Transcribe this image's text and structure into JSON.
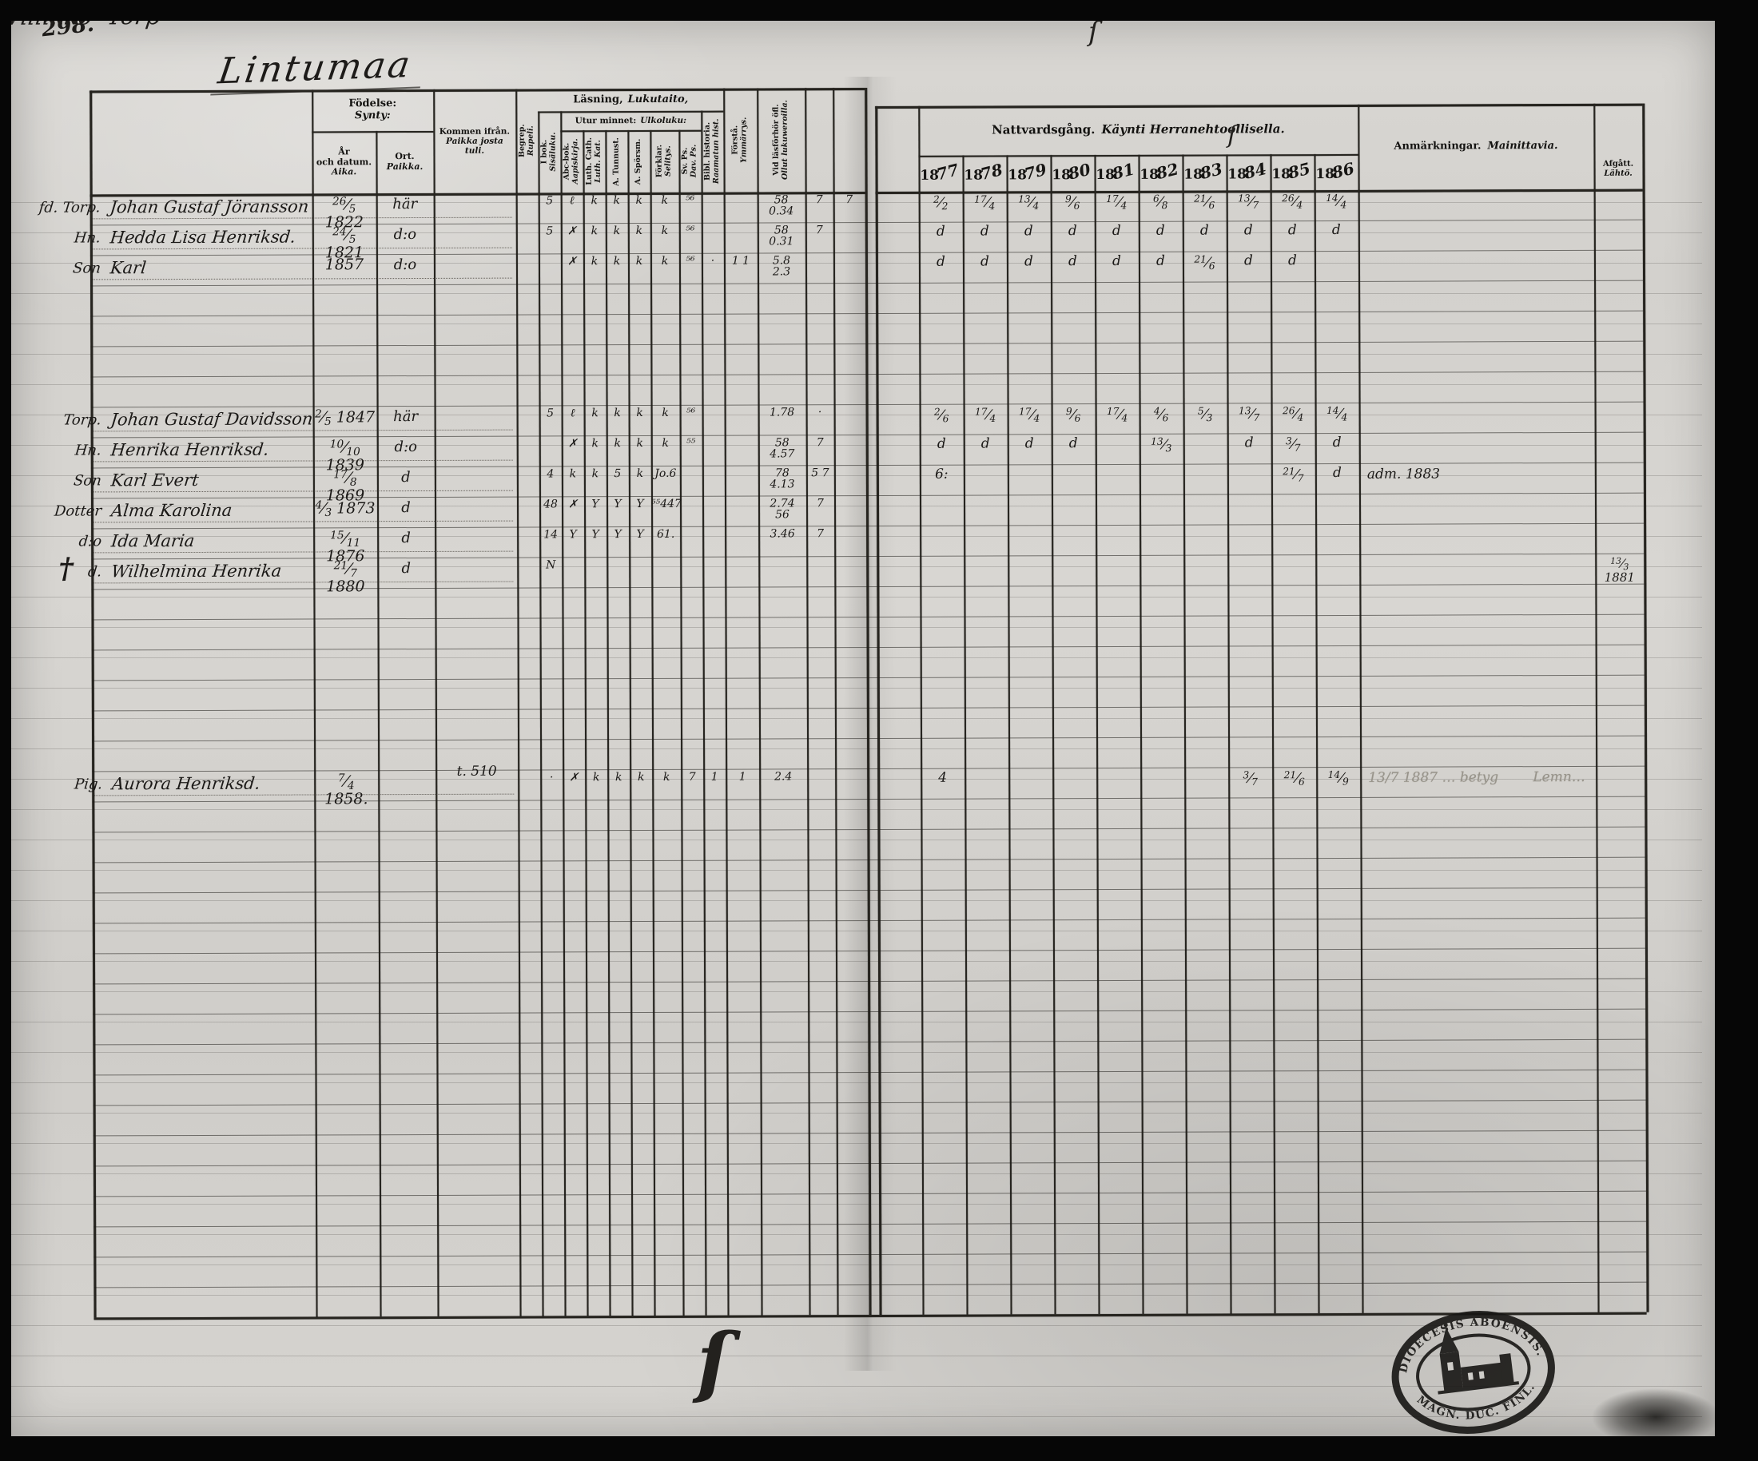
{
  "page": {
    "number": "298.",
    "title": "Lintumaa",
    "household_title": "Willikko  Torp"
  },
  "headers": {
    "fodelse_sv": "Födelse:",
    "fodelse_fi": "Synty:",
    "ar_1": "År",
    "ar_2": "och datum.",
    "ar_fi": "Aika.",
    "ort_sv": "Ort.",
    "ort_fi": "Paikka.",
    "kommen_sv": "Kommen ifrån.",
    "kommen_fi1": "Paikka josta",
    "kommen_fi2": "tuli.",
    "lasning_sv": "Läsning,",
    "lasning_fi": "Lukutaito,",
    "utur_sv": "Utur minnet:",
    "utur_fi": "Ulkoluku:",
    "nattvard_sv": "Nattvardsgång.",
    "nattvard_fi": "Käynti Herranehtoollisella.",
    "year_prefix": "18",
    "years": [
      "77",
      "78",
      "79",
      "80",
      "81",
      "82",
      "83",
      "84",
      "85",
      "86"
    ],
    "anmark_sv": "Anmärkningar.",
    "anmark_fi": "Mainittavia.",
    "afgatt_sv": "Afgått.",
    "afgatt_fi": "Lähtö."
  },
  "rotated_columns": [
    {
      "sv": "Begrep.",
      "fi": "Rupeli."
    },
    {
      "sv": "I bok.",
      "fi": "Sisäluku."
    },
    {
      "sv": "Abc-bok.",
      "fi": "Aapiskirja."
    },
    {
      "sv": "Luth. Cath.",
      "fi": "Luth. Kat."
    },
    {
      "sv": "A. Tunnust.",
      "fi": ""
    },
    {
      "sv": "A. Spörsm.",
      "fi": ""
    },
    {
      "sv": "Förklar.",
      "fi": "Selitys."
    },
    {
      "sv": "Sv. Ps.",
      "fi": "Dav. Ps."
    },
    {
      "sv": "Bibl. historia.",
      "fi": "Raamatun hist."
    },
    {
      "sv": "Förstå.",
      "fi": "Ymmärrys."
    },
    {
      "sv": "Vid läsförhör öfl.",
      "fi": "Ollut lukuweroilla."
    }
  ],
  "people": [
    {
      "row": 0,
      "margin": "fd. Torp.",
      "name": "Johan Gustaf Jöransson",
      "b_day": "26/5",
      "b_year": "1822",
      "ort": "här",
      "from": "",
      "reading": [
        "",
        "5",
        "ℓ",
        "k",
        "k",
        "k",
        "k",
        "⁵⁶",
        "",
        "",
        "58\n0.34",
        "7",
        "7"
      ],
      "communion": [
        "2/2",
        "17/4",
        "13/4",
        "9/6",
        "17/4",
        "6/8",
        "21/6",
        "13/7",
        "26/4",
        "14/4"
      ],
      "remark": "",
      "remark_pencil": false,
      "afgatt": "",
      "cross": false
    },
    {
      "row": 1,
      "margin": "Hn.",
      "name": "Hedda Lisa Henriksd.",
      "b_day": "24/5",
      "b_year": "1821",
      "ort": "d:o",
      "from": "",
      "reading": [
        "",
        "5",
        "✗",
        "k",
        "k",
        "k",
        "k",
        "⁵⁶",
        "",
        "",
        "58\n0.31",
        "7",
        ""
      ],
      "communion": [
        "d",
        "d",
        "d",
        "d",
        "d",
        "d",
        "d",
        "d",
        "d",
        "d"
      ],
      "remark": "",
      "remark_pencil": false,
      "afgatt": "",
      "cross": false
    },
    {
      "row": 2,
      "margin": "Son",
      "name": "Karl",
      "b_day": "",
      "b_year": "1857",
      "ort": "d:o",
      "from": "",
      "reading": [
        "",
        "",
        "✗",
        "k",
        "k",
        "k",
        "k",
        "⁵⁶",
        "·",
        "1 1",
        "5.8\n2.3",
        "",
        ""
      ],
      "communion": [
        "d",
        "d",
        "d",
        "d",
        "d",
        "d",
        "21/6",
        "d",
        "d",
        ""
      ],
      "remark": "",
      "remark_pencil": false,
      "afgatt": "",
      "cross": false
    },
    {
      "row": 7,
      "margin": "Torp.",
      "name": "Johan Gustaf Davidsson",
      "b_day": "2/5",
      "b_year": "1847",
      "ort": "här",
      "from": "",
      "reading": [
        "",
        "5",
        "ℓ",
        "k",
        "k",
        "k",
        "k",
        "⁵⁶",
        "",
        "",
        "1.78",
        "·",
        ""
      ],
      "communion": [
        "2/6",
        "17/4",
        "17/4",
        "9/6",
        "17/4",
        "4/6",
        "5/3",
        "13/7",
        "26/4",
        "14/4"
      ],
      "remark": "",
      "remark_pencil": false,
      "afgatt": "",
      "cross": false
    },
    {
      "row": 8,
      "margin": "Hn.",
      "name": "Henrika Henriksd.",
      "b_day": "10/10",
      "b_year": "1839",
      "ort": "d:o",
      "from": "",
      "reading": [
        "",
        "",
        "✗",
        "k",
        "k",
        "k",
        "k",
        "⁵⁵",
        "",
        "",
        "58\n4.57",
        "7",
        ""
      ],
      "communion": [
        "d",
        "d",
        "d",
        "d",
        "",
        "13/3",
        "",
        "d",
        "3/7",
        "d"
      ],
      "remark": "",
      "remark_pencil": false,
      "afgatt": "",
      "cross": false
    },
    {
      "row": 9,
      "margin": "Son",
      "name": "Karl Evert",
      "b_day": "17/8",
      "b_year": "1869",
      "ort": "d",
      "from": "",
      "reading": [
        "",
        "4",
        "k",
        "k",
        "5",
        "k",
        "Jo.6",
        "",
        "",
        "",
        "78\n4.13",
        "5 7",
        ""
      ],
      "communion": [
        "6:",
        "",
        "",
        "",
        "",
        "",
        "",
        "",
        "21/7",
        "d"
      ],
      "remark": "adm. 1883",
      "remark_pencil": false,
      "afgatt": "",
      "cross": false
    },
    {
      "row": 10,
      "margin": "Dotter",
      "name": "Alma Karolina",
      "b_day": "4/3",
      "b_year": "1873",
      "ort": "d",
      "from": "",
      "reading": [
        "",
        "48",
        "✗",
        "Y",
        "Y",
        "Y",
        "⁵⁵447",
        "",
        "",
        "",
        "2.74\n56",
        "7",
        ""
      ],
      "communion": [
        "",
        "",
        "",
        "",
        "",
        "",
        "",
        "",
        "",
        ""
      ],
      "remark": "",
      "remark_pencil": false,
      "afgatt": "",
      "cross": false
    },
    {
      "row": 11,
      "margin": "d:o",
      "name": "Ida Maria",
      "b_day": "15/11",
      "b_year": "1876",
      "ort": "d",
      "from": "",
      "reading": [
        "",
        "14",
        "Y",
        "Y",
        "Y",
        "Y",
        "61.",
        "",
        "",
        "",
        "3.46",
        "7",
        ""
      ],
      "communion": [
        "",
        "",
        "",
        "",
        "",
        "",
        "",
        "",
        "",
        ""
      ],
      "remark": "",
      "remark_pencil": false,
      "afgatt": "",
      "cross": false
    },
    {
      "row": 12,
      "margin": "d.",
      "name": "Wilhelmina Henrika",
      "b_day": "21/7",
      "b_year": "1880",
      "ort": "d",
      "from": "",
      "reading": [
        "",
        "N",
        "",
        "",
        "",
        "",
        "",
        "",
        "",
        "",
        "",
        "",
        ""
      ],
      "communion": [
        "",
        "",
        "",
        "",
        "",
        "",
        "",
        "",
        "",
        ""
      ],
      "remark": "",
      "remark_pencil": false,
      "afgatt": "13/3 1881",
      "cross": true
    },
    {
      "row": 19,
      "margin": "Pig.",
      "name": "Aurora Henriksd.",
      "b_day": "7/4",
      "b_year": "1858.",
      "ort": "",
      "from": "t. 510",
      "reading": [
        "",
        "·",
        "✗",
        "k",
        "k",
        "k",
        "k",
        "7",
        "1",
        "1",
        "2.4",
        "",
        ""
      ],
      "communion": [
        "4",
        "",
        "",
        "",
        "",
        "",
        "",
        "3/7",
        "21/6",
        "14/9"
      ],
      "remark": "13/7 1887 … betyg        Lemn…",
      "remark_pencil": true,
      "afgatt": "",
      "cross": false
    }
  ],
  "marginalia": {
    "cross_glyph": "†",
    "stray_top": "ſ",
    "stray_mid": "ſ",
    "stray_bottom": "ſ"
  },
  "stamp": {
    "top_text": "DIOECESIS ABOENSIS.",
    "bottom_text": "MAGN. DUC. FINL."
  }
}
